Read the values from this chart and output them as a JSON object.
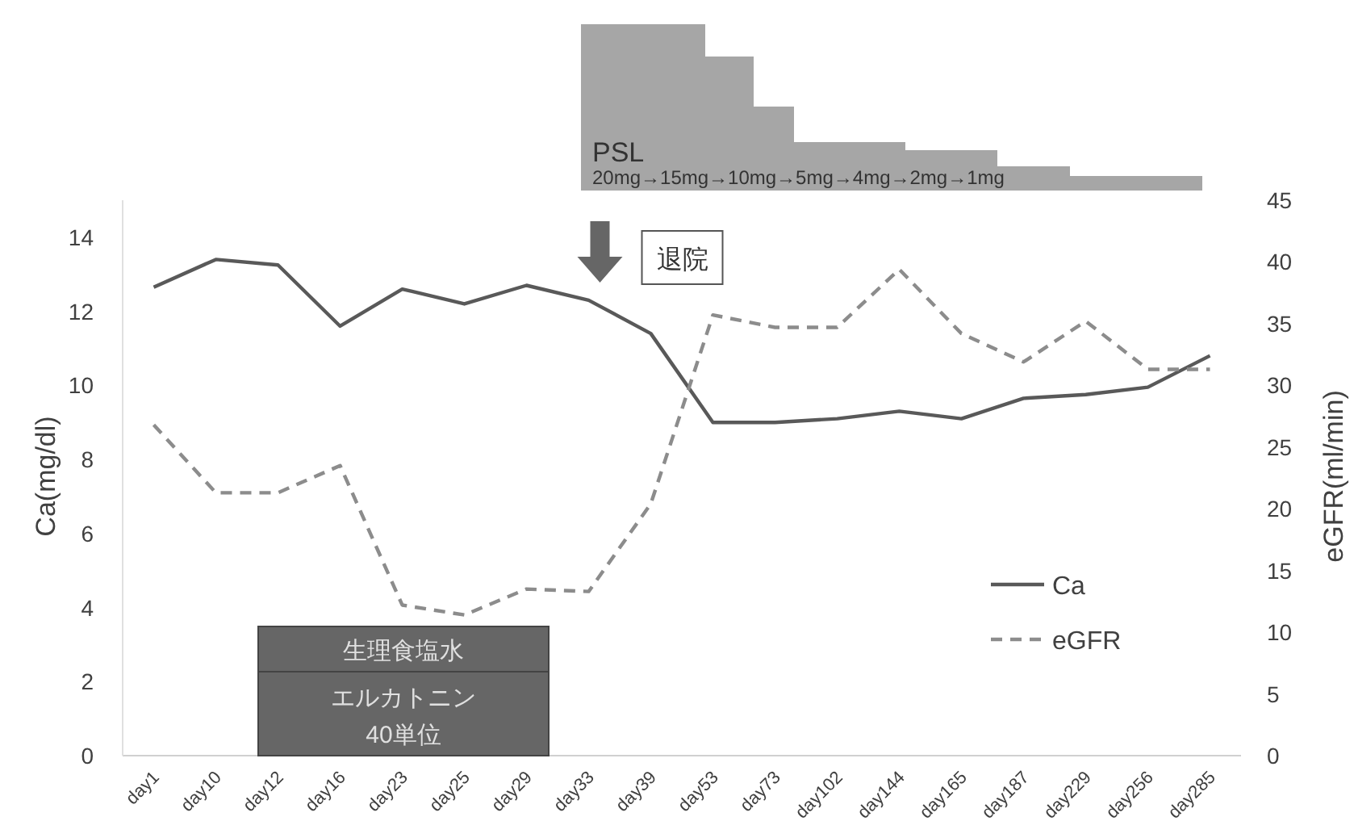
{
  "chart_data": {
    "type": "line",
    "categories": [
      "day1",
      "day10",
      "day12",
      "day16",
      "day23",
      "day25",
      "day29",
      "day33",
      "day39",
      "day53",
      "day73",
      "day102",
      "day144",
      "day165",
      "day187",
      "day229",
      "day256",
      "day285"
    ],
    "series": [
      {
        "name": "Ca",
        "color": "#595959",
        "line_style": "solid",
        "values": [
          12.65,
          13.4,
          13.25,
          11.6,
          12.6,
          12.2,
          12.7,
          12.3,
          11.4,
          9.0,
          9.0,
          9.1,
          9.3,
          9.1,
          9.65,
          9.75,
          9.95,
          10.8
        ]
      },
      {
        "name": "eGFR",
        "color": "#8c8c8c",
        "line_style": "dashed",
        "axis": "y2",
        "values": [
          26.8,
          21.3,
          21.3,
          23.5,
          12.2,
          11.4,
          13.5,
          13.3,
          20.4,
          35.7,
          34.7,
          34.7,
          39.4,
          34.2,
          31.9,
          35.2,
          31.3,
          31.3
        ]
      }
    ],
    "ylabel": "Ca(mg/dl)",
    "y2label": "eGFR(ml/min)",
    "ylim": [
      0,
      15
    ],
    "yticks": [
      0,
      2,
      4,
      6,
      8,
      10,
      12,
      14
    ],
    "y2lim": [
      0,
      45
    ],
    "y2ticks": [
      0,
      5,
      10,
      15,
      20,
      25,
      30,
      35,
      40,
      45
    ],
    "legend": "right",
    "annotations": [
      "PSL",
      "20mg→15mg→10mg→5mg→4mg→2mg→1mg",
      "退院",
      "生理食塩水",
      "エルカトニン\n40単位"
    ]
  }
}
